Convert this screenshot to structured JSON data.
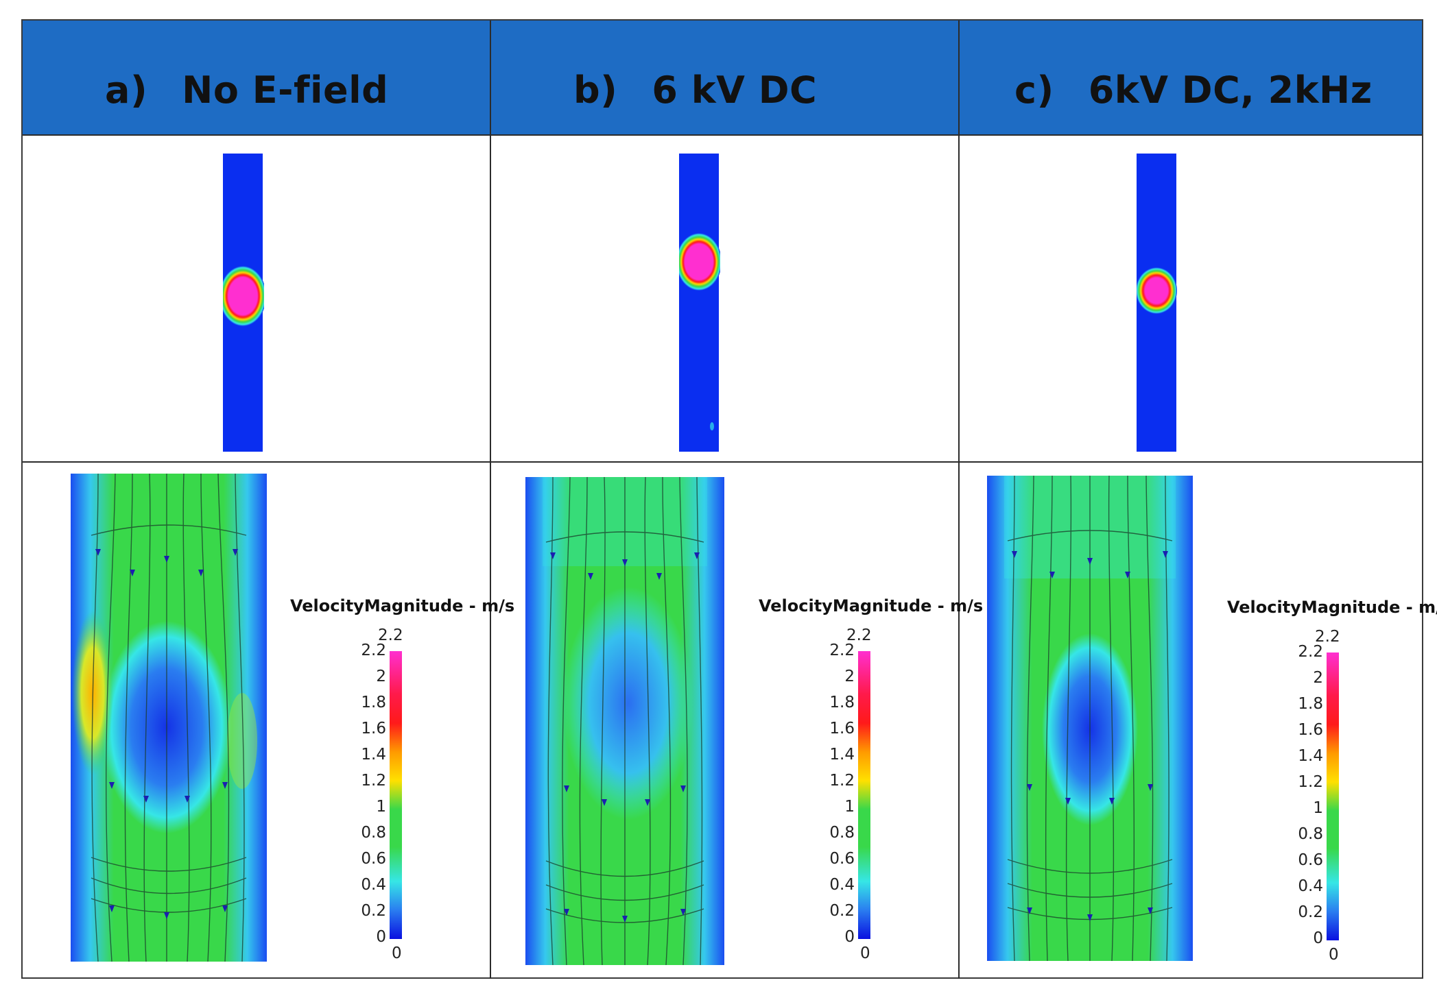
{
  "panels": [
    {
      "tag": "a)",
      "title": "No E-field"
    },
    {
      "tag": "b)",
      "title": "6 kV DC"
    },
    {
      "tag": "c)",
      "title": "6kV DC, 2kHz"
    }
  ],
  "colorbar": {
    "title": "VelocityMagnitude - m/s",
    "top_label": "2.2",
    "bottom_label": "0",
    "ticks": [
      "2.2",
      "2",
      "1.8",
      "1.6",
      "1.4",
      "1.2",
      "1",
      "0.8",
      "0.6",
      "0.4",
      "0.2",
      "0"
    ],
    "max": 2.2,
    "min": 0
  },
  "colors": {
    "header": "#1e6cc4",
    "field_blue": "#0a2ef0",
    "droplet": "#ff2fd0",
    "flow_green": "#39d84a",
    "flow_cyan": "#36e6e6"
  }
}
